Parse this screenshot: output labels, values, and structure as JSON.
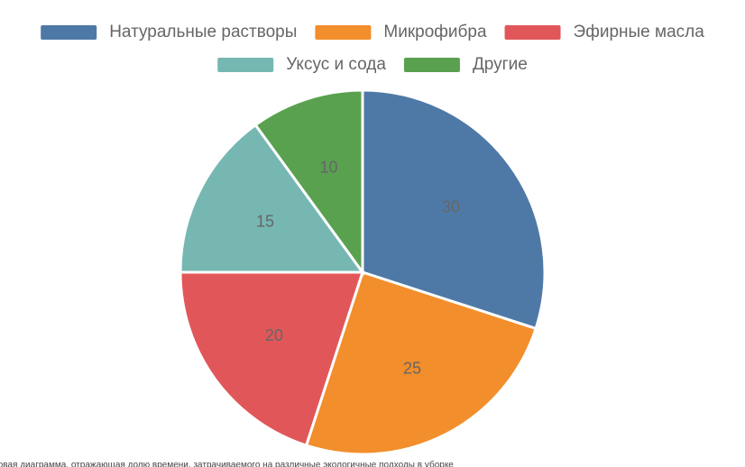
{
  "chart_data": {
    "type": "pie",
    "categories": [
      "Натуральные растворы",
      "Микрофибра",
      "Эфирные масла",
      "Уксус и сода",
      "Другие"
    ],
    "values": [
      30,
      25,
      20,
      15,
      10
    ],
    "colors": [
      "#4e79a7",
      "#f28e2b",
      "#e15759",
      "#76b7b2",
      "#59a14f"
    ],
    "legend": "top",
    "caption": "Круговая диаграмма, отражающая долю времени, затрачиваемого на различные экологичные подходы в уборке"
  }
}
